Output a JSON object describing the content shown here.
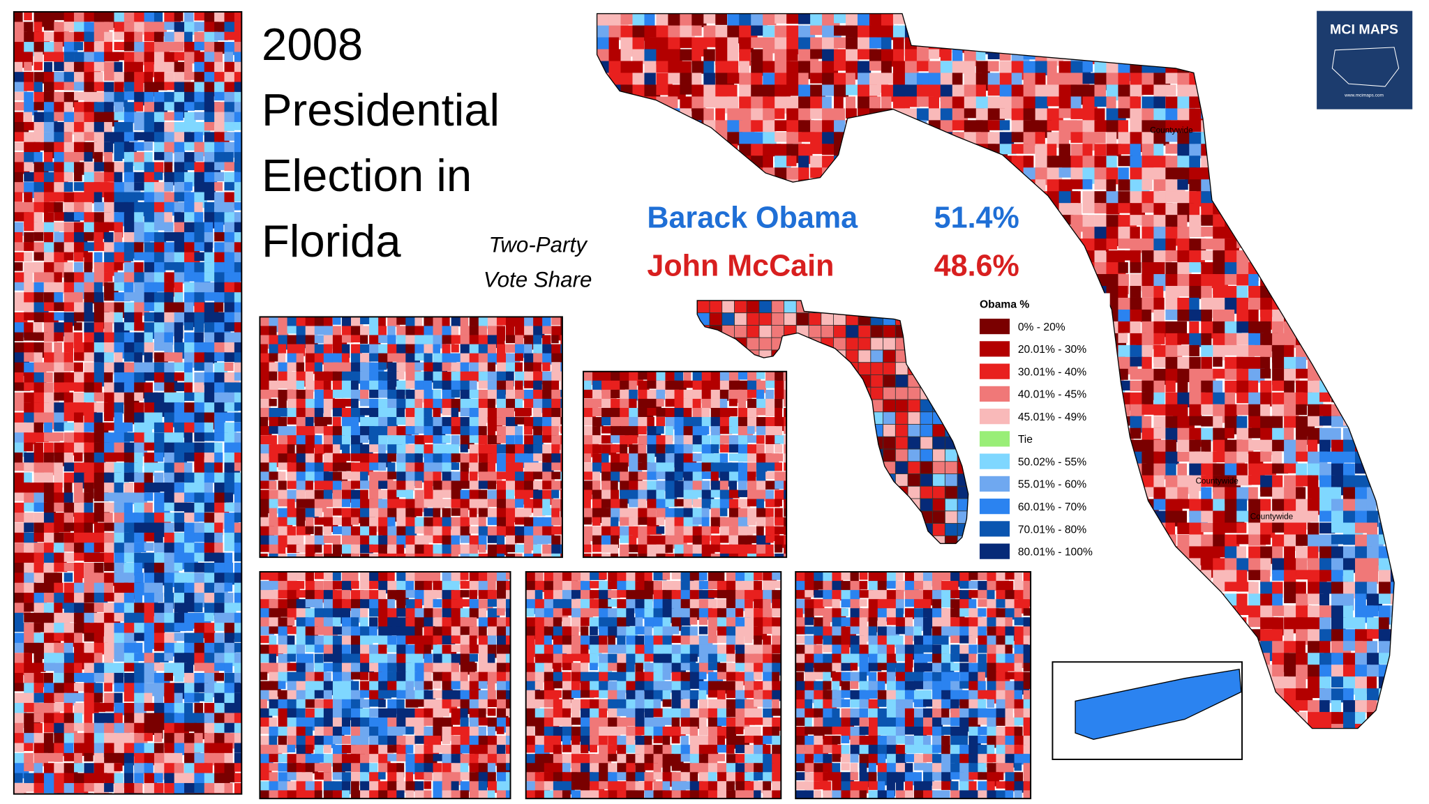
{
  "header": {
    "title_lines": [
      "2008",
      "Presidential",
      "Election in",
      "Florida"
    ],
    "subtitle_lines": [
      "Two-Party",
      "Vote Share"
    ]
  },
  "results": [
    {
      "name": "Barack Obama",
      "share": "51.4%",
      "color": "#1f6fd6"
    },
    {
      "name": "John McCain",
      "share": "48.6%",
      "color": "#d81f1f"
    }
  ],
  "legend": {
    "title": "Obama %",
    "entries": [
      {
        "label": "0% - 20%",
        "color": "#7a0000"
      },
      {
        "label": "20.01% - 30%",
        "color": "#b30000"
      },
      {
        "label": "30.01% - 40%",
        "color": "#e8201e"
      },
      {
        "label": "40.01% - 45%",
        "color": "#f07878"
      },
      {
        "label": "45.01% - 49%",
        "color": "#f9b9b9"
      },
      {
        "label": "Tie",
        "color": "#99ee77"
      },
      {
        "label": "50.02% - 55%",
        "color": "#7fd7ff"
      },
      {
        "label": "55.01% - 60%",
        "color": "#6fa8f0"
      },
      {
        "label": "60.01% - 70%",
        "color": "#2b83f0"
      },
      {
        "label": "70.01% - 80%",
        "color": "#0a55b0"
      },
      {
        "label": "80.01% - 100%",
        "color": "#062a78"
      }
    ]
  },
  "map_labels": [
    "Countywide",
    "Countywide",
    "Countywide"
  ],
  "logo": {
    "name": "MCI MAPS",
    "url": "www.mcimaps.com"
  }
}
